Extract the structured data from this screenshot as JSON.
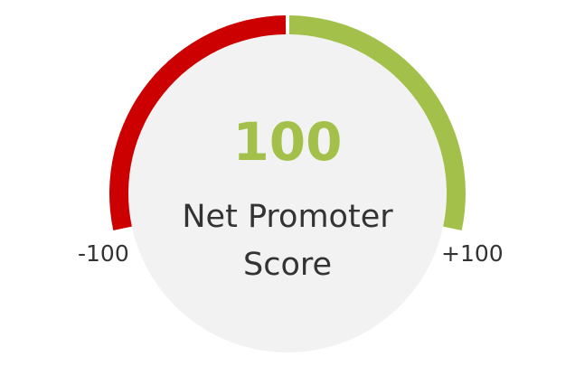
{
  "chart_data": {
    "type": "gauge",
    "value": 100,
    "min": -100,
    "max": 100,
    "min_label": "-100",
    "max_label": "+100",
    "value_label": "100",
    "title_lines": [
      "Net Promoter",
      "Score"
    ],
    "segments": [
      {
        "from": -100,
        "to": 0,
        "color": "#cc0000"
      },
      {
        "from": 0,
        "to": 100,
        "color": "#a3c14a"
      }
    ],
    "track_color": "#ffffff",
    "face_color": "#f2f2f2",
    "value_color": "#a3c14a",
    "text_color": "#333333"
  }
}
